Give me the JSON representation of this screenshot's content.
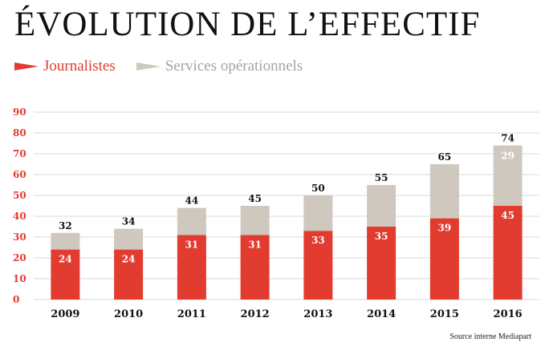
{
  "title": "ÉVOLUTION DE L’EFFECTIF",
  "source": "Source interne Mediapart",
  "colors": {
    "journalistes": "#e23b2f",
    "services": "#cfc8bf",
    "axis_text": "#e23b2f",
    "grid": "#d8d8d8",
    "text": "#111111"
  },
  "chart_data": {
    "type": "bar",
    "stacked": true,
    "categories": [
      "2009",
      "2010",
      "2011",
      "2012",
      "2013",
      "2014",
      "2015",
      "2016"
    ],
    "series": [
      {
        "name": "Journalistes",
        "values": [
          24,
          24,
          31,
          31,
          33,
          35,
          39,
          45
        ],
        "labels": [
          "24",
          "24",
          "31",
          "31",
          "33",
          "35",
          "39",
          "45"
        ]
      },
      {
        "name": "Services opérationnels",
        "values": [
          8,
          10,
          13,
          14,
          17,
          20,
          26,
          29
        ],
        "labels": [
          "",
          "",
          "",
          "",
          "",
          "",
          "",
          "29"
        ]
      }
    ],
    "totals": [
      "32",
      "34",
      "44",
      "45",
      "50",
      "55",
      "65",
      "74"
    ],
    "yticks": [
      "0",
      "10",
      "20",
      "30",
      "40",
      "50",
      "60",
      "70",
      "80",
      "90"
    ],
    "ylim": [
      0,
      90
    ],
    "grid": true,
    "legend_position": "top-left"
  }
}
